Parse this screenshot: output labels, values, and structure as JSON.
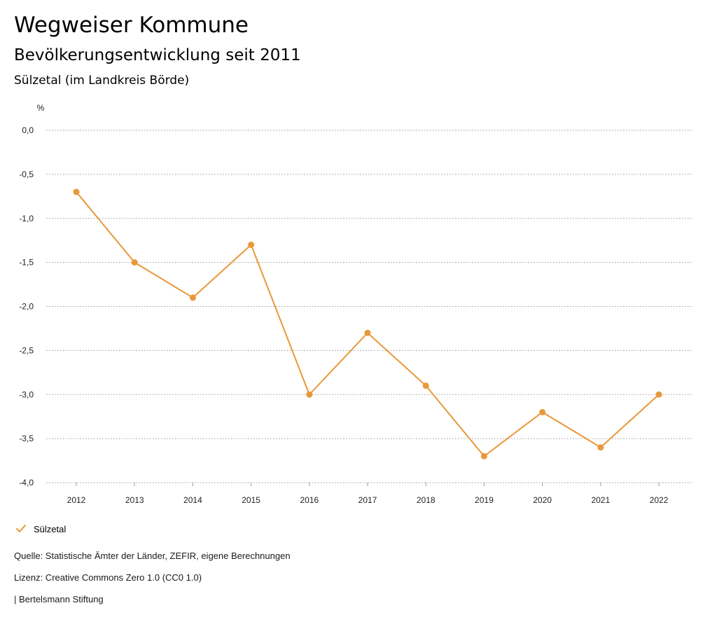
{
  "header": {
    "title": "Wegweiser Kommune",
    "subtitle": "Bevölkerungsentwicklung seit 2011",
    "region": "Sülzetal (im Landkreis Börde)"
  },
  "chart_data": {
    "type": "line",
    "title": "Bevölkerungsentwicklung seit 2011",
    "xlabel": "",
    "ylabel": "%",
    "categories": [
      "2012",
      "2013",
      "2014",
      "2015",
      "2016",
      "2017",
      "2018",
      "2019",
      "2020",
      "2021",
      "2022"
    ],
    "series": [
      {
        "name": "Sülzetal",
        "color": "#E8983A",
        "values": [
          -0.7,
          -1.5,
          -1.9,
          -1.3,
          -3.0,
          -2.3,
          -2.9,
          -3.7,
          -3.2,
          -3.6,
          -3.0
        ]
      }
    ],
    "ylim": [
      -4.0,
      0.0
    ],
    "yticks": [
      0.0,
      -0.5,
      -1.0,
      -1.5,
      -2.0,
      -2.5,
      -3.0,
      -3.5,
      -4.0
    ],
    "ytick_labels": [
      "0,0",
      "-0,5",
      "-1,0",
      "-1,5",
      "-2,0",
      "-2,5",
      "-3,0",
      "-3,5",
      "-4,0"
    ],
    "grid": true,
    "legend": "bottom-left"
  },
  "legend": {
    "label": "Sülzetal"
  },
  "footer": {
    "source": "Quelle: Statistische Ämter der Länder, ZEFIR, eigene Berechnungen",
    "license": "Lizenz: Creative Commons Zero 1.0 (CC0 1.0)",
    "brand": "| Bertelsmann Stiftung"
  }
}
